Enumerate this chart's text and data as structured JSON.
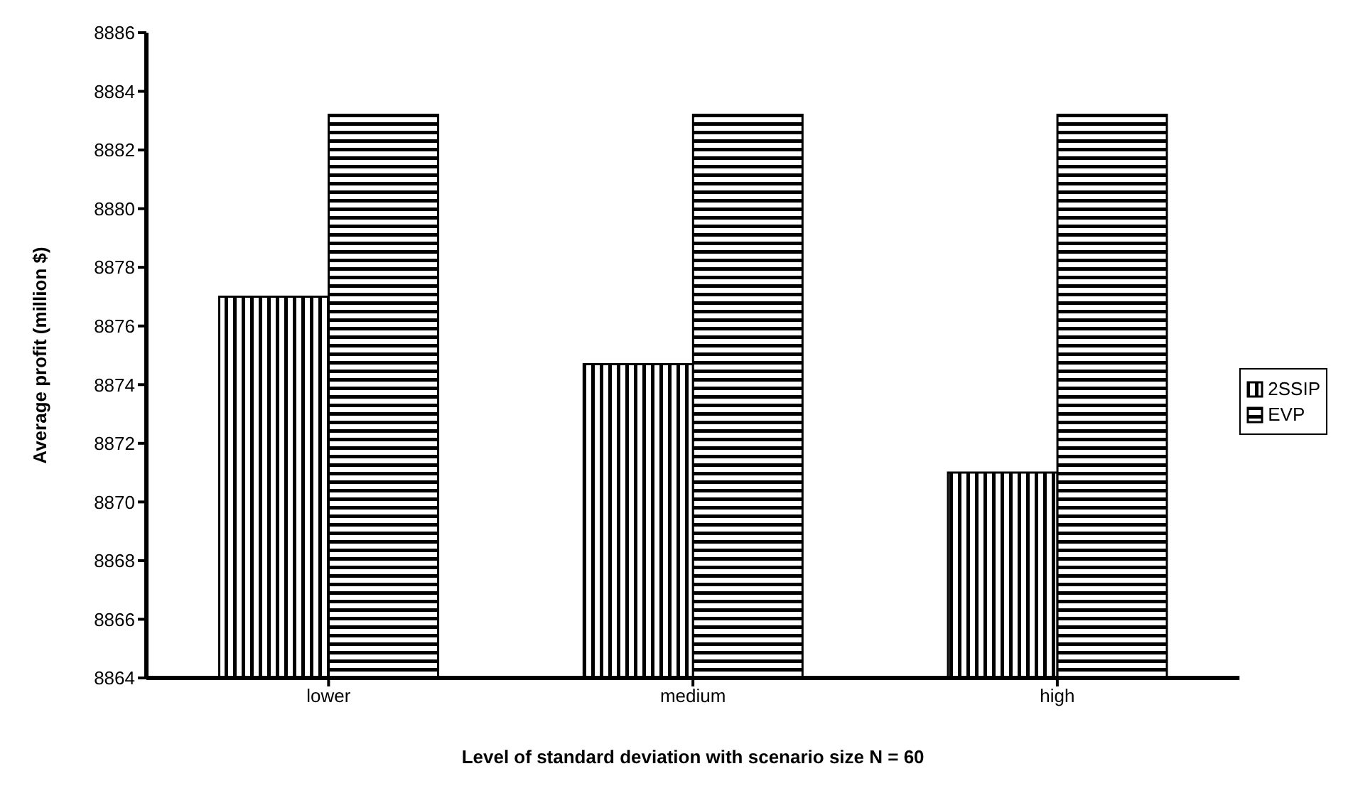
{
  "chart_data": {
    "type": "bar",
    "xlabel": "Level of standard deviation with scenario size N = 60",
    "ylabel": "Average profit (million $)",
    "categories": [
      "lower",
      "medium",
      "high"
    ],
    "series": [
      {
        "name": "2SSIP",
        "color": "#000000",
        "values": [
          8877.0,
          8874.7,
          8871.0
        ]
      },
      {
        "name": "EVP",
        "color": "#000000",
        "values": [
          8883.2,
          8883.2,
          8883.2
        ]
      }
    ],
    "ylim": [
      8864,
      8886
    ],
    "yticks": [
      8864,
      8866,
      8868,
      8870,
      8872,
      8874,
      8876,
      8878,
      8880,
      8882,
      8884,
      8886
    ],
    "grid": false,
    "legend": "right"
  }
}
